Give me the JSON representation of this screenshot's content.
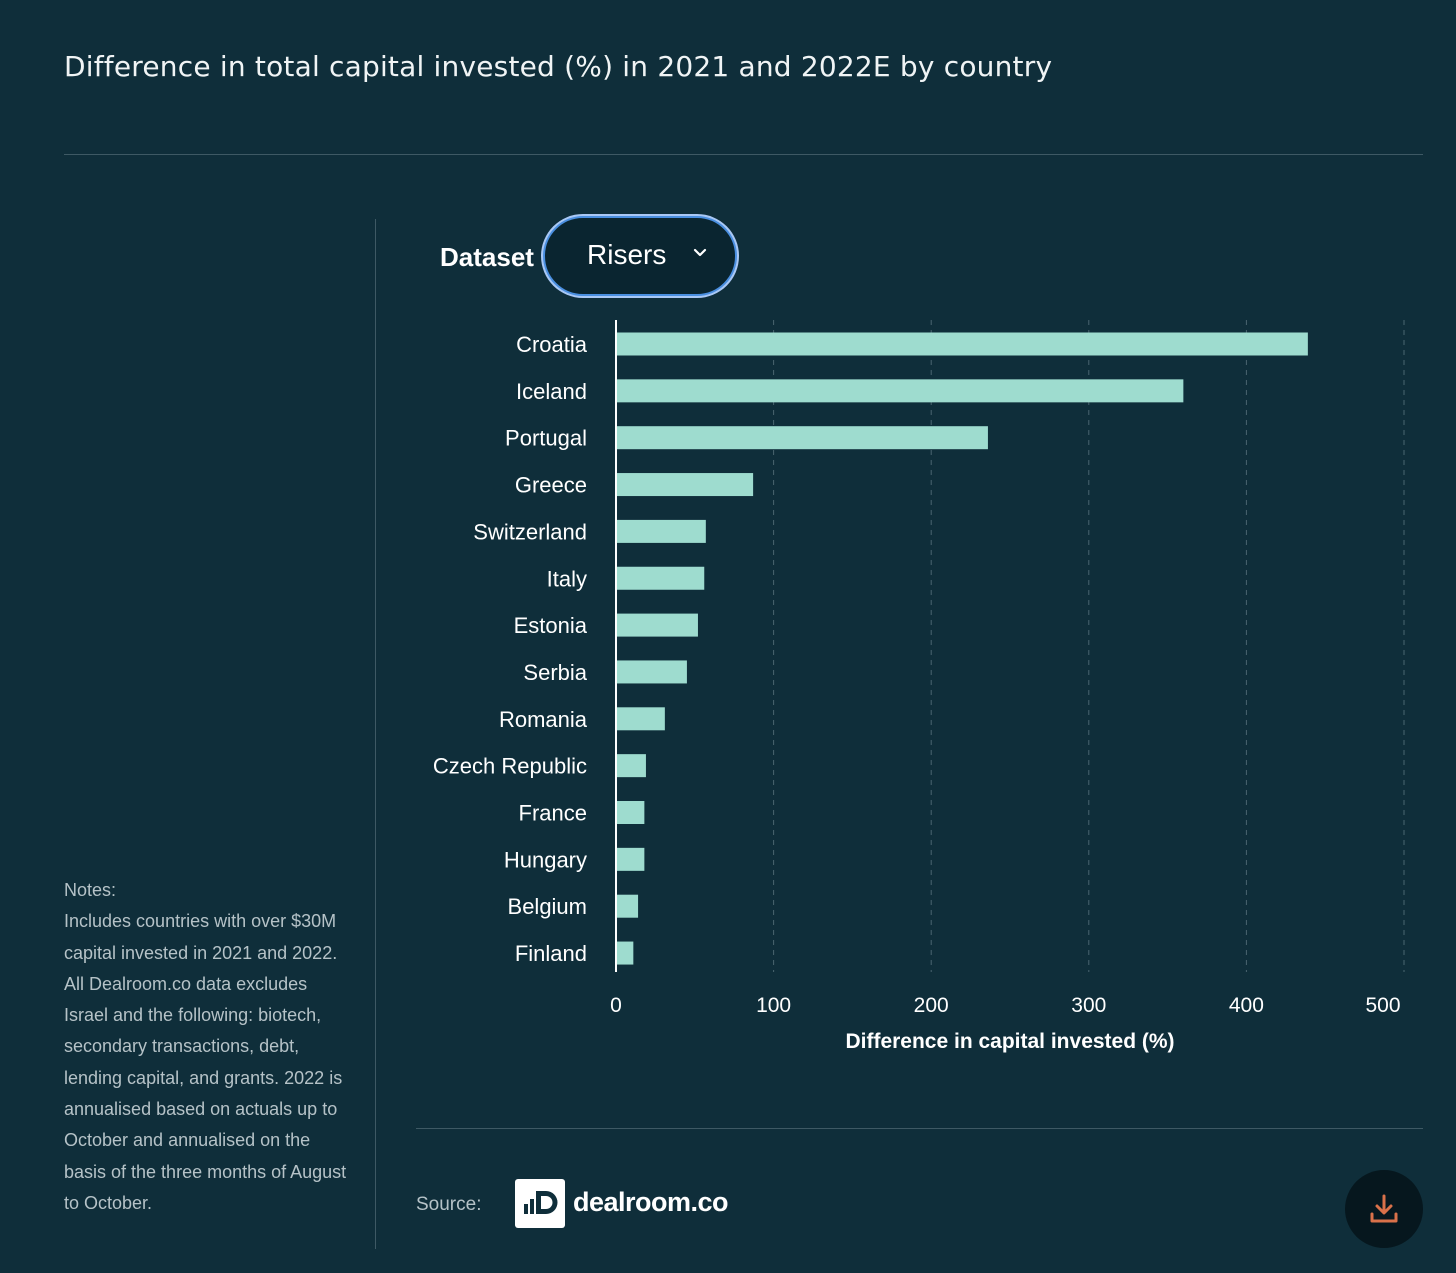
{
  "title": "Difference in total capital invested (%) in 2021 and 2022E by country",
  "controls": {
    "dataset_label": "Dataset",
    "dataset_value": "Risers"
  },
  "notes": {
    "heading": "Notes:",
    "body": "Includes countries with over $30M capital invested in 2021 and 2022. All Dealroom.co data excludes Israel and the following: biotech, secondary transactions, debt, lending capital, and grants. 2022 is annualised based on actuals up to October and annualised on the basis of the three months of August to October."
  },
  "footer": {
    "source_label": "Source:",
    "logo_text": "dealroom.co",
    "download_icon": "download-icon"
  },
  "colors": {
    "background": "#0f2e3a",
    "bar": "#9edccf",
    "gridline": "#4a6570",
    "download_icon": "#d9714a"
  },
  "chart_data": {
    "type": "bar",
    "orientation": "horizontal",
    "categories": [
      "Croatia",
      "Iceland",
      "Portugal",
      "Greece",
      "Switzerland",
      "Italy",
      "Estonia",
      "Serbia",
      "Romania",
      "Czech Republic",
      "France",
      "Hungary",
      "Belgium",
      "Finland"
    ],
    "values": [
      439,
      360,
      236,
      87,
      57,
      56,
      52,
      45,
      31,
      19,
      18,
      18,
      14,
      11
    ],
    "xlabel": "Difference in capital invested (%)",
    "ylabel": "",
    "xlim": [
      0,
      500
    ],
    "xticks": [
      0,
      100,
      200,
      300,
      400,
      500
    ],
    "grid": "vertical dashed"
  }
}
